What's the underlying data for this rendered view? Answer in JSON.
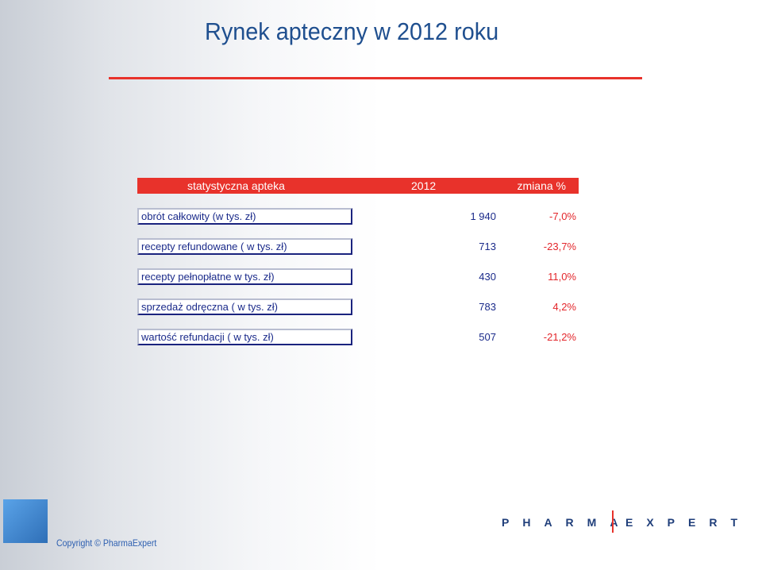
{
  "title": "Rynek apteczny w 2012 roku",
  "colors": {
    "accent": "#e8322b",
    "navy": "#1a2a8a",
    "title": "#1f4f8f"
  },
  "table": {
    "header": {
      "label": "statystyczna apteka",
      "year": "2012",
      "change": "zmiana %"
    },
    "rows": [
      {
        "label": "obrót całkowity (w tys. zł)",
        "value": "1 940",
        "change": "-7,0%"
      },
      {
        "label": "recepty refundowane ( w tys. zł)",
        "value": "713",
        "change": "-23,7%"
      },
      {
        "label": "recepty pełnopłatne w tys. zł)",
        "value": "430",
        "change": "11,0%"
      },
      {
        "label": "sprzedaż odręczna ( w tys. zł)",
        "value": "783",
        "change": "4,2%"
      },
      {
        "label": "wartość refundacji ( w tys. zł)",
        "value": "507",
        "change": "-21,2%"
      }
    ]
  },
  "footer": {
    "copyright": "Copyright © PharmaExpert",
    "brand_left": "PHARMA",
    "brand_right": "EXPERT"
  }
}
